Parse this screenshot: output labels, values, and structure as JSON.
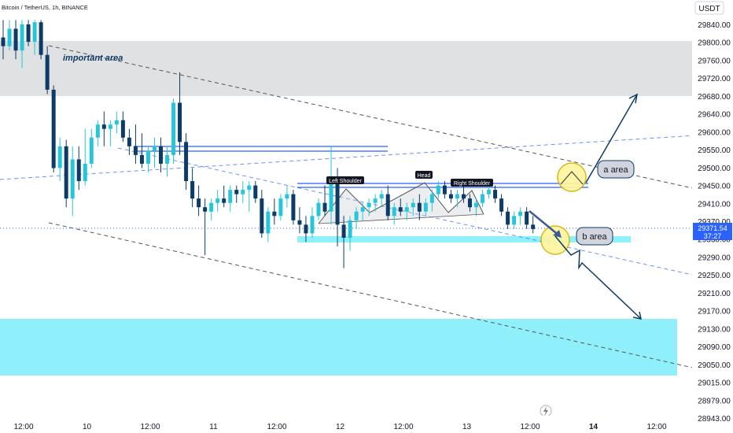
{
  "header": {
    "symbol_text": "Bitcoin / TetherUS, 1h, BINANCE"
  },
  "price_axis": {
    "currency": "USDT",
    "ticks": [
      "29840.00",
      "29800.00",
      "29760.00",
      "29720.00",
      "29680.00",
      "29640.00",
      "29600.00",
      "29550.00",
      "29500.00",
      "29450.00",
      "29410.00",
      "29370.00",
      "29330.00",
      "29290.00",
      "29250.00",
      "29210.00",
      "29170.00",
      "29130.00",
      "29090.00",
      "29050.00",
      "29015.00",
      "28979.00",
      "28943.00"
    ],
    "last_price": "29371.54",
    "countdown": "37:27",
    "last_price_color": "#2962ff"
  },
  "time_axis": {
    "ticks": [
      "12:00",
      "10",
      "12:00",
      "11",
      "12:00",
      "12",
      "12:00",
      "13",
      "12:00",
      "14",
      "12:00"
    ]
  },
  "annotations": {
    "important_area": "important area",
    "left_shoulder": "Left Shoulder",
    "head": "Head",
    "right_shoulder": "Right Shoulder",
    "a_area": "a area",
    "b_area": "b area"
  },
  "colors": {
    "up": "#26c6da",
    "down": "#0d3b66",
    "zone_gray": "#e0e1e3",
    "zone_cyan": "#8ff0fb",
    "trend": "#2962ff",
    "accent": "#2962ff"
  },
  "icons": {
    "replay": "lightning-icon"
  },
  "chart_data": {
    "type": "candlestick",
    "title": "Bitcoin / TetherUS, 1h, BINANCE",
    "ylim": [
      28943,
      29840
    ],
    "unit": "USDT",
    "candles": [
      {
        "o": 29810,
        "h": 29850,
        "l": 29760,
        "c": 29790
      },
      {
        "o": 29790,
        "h": 29850,
        "l": 29780,
        "c": 29830
      },
      {
        "o": 29830,
        "h": 29850,
        "l": 29760,
        "c": 29780
      },
      {
        "o": 29780,
        "h": 29850,
        "l": 29740,
        "c": 29840
      },
      {
        "o": 29840,
        "h": 29850,
        "l": 29790,
        "c": 29800
      },
      {
        "o": 29800,
        "h": 29850,
        "l": 29770,
        "c": 29845
      },
      {
        "o": 29845,
        "h": 29850,
        "l": 29760,
        "c": 29770
      },
      {
        "o": 29770,
        "h": 29790,
        "l": 29680,
        "c": 29690
      },
      {
        "o": 29690,
        "h": 29700,
        "l": 29500,
        "c": 29510
      },
      {
        "o": 29510,
        "h": 29580,
        "l": 29480,
        "c": 29560
      },
      {
        "o": 29560,
        "h": 29575,
        "l": 29420,
        "c": 29440
      },
      {
        "o": 29440,
        "h": 29560,
        "l": 29400,
        "c": 29530
      },
      {
        "o": 29530,
        "h": 29560,
        "l": 29460,
        "c": 29480
      },
      {
        "o": 29480,
        "h": 29600,
        "l": 29470,
        "c": 29520
      },
      {
        "o": 29520,
        "h": 29600,
        "l": 29510,
        "c": 29580
      },
      {
        "o": 29580,
        "h": 29620,
        "l": 29560,
        "c": 29610
      },
      {
        "o": 29610,
        "h": 29640,
        "l": 29560,
        "c": 29600
      },
      {
        "o": 29600,
        "h": 29620,
        "l": 29560,
        "c": 29610
      },
      {
        "o": 29610,
        "h": 29640,
        "l": 29590,
        "c": 29620
      },
      {
        "o": 29620,
        "h": 29640,
        "l": 29570,
        "c": 29580
      },
      {
        "o": 29580,
        "h": 29600,
        "l": 29540,
        "c": 29560
      },
      {
        "o": 29560,
        "h": 29610,
        "l": 29520,
        "c": 29540
      },
      {
        "o": 29540,
        "h": 29590,
        "l": 29510,
        "c": 29520
      },
      {
        "o": 29520,
        "h": 29560,
        "l": 29500,
        "c": 29550
      },
      {
        "o": 29550,
        "h": 29580,
        "l": 29510,
        "c": 29560
      },
      {
        "o": 29560,
        "h": 29580,
        "l": 29500,
        "c": 29520
      },
      {
        "o": 29520,
        "h": 29560,
        "l": 29490,
        "c": 29540
      },
      {
        "o": 29540,
        "h": 29670,
        "l": 29520,
        "c": 29660
      },
      {
        "o": 29660,
        "h": 29730,
        "l": 29540,
        "c": 29570
      },
      {
        "o": 29570,
        "h": 29590,
        "l": 29460,
        "c": 29480
      },
      {
        "o": 29480,
        "h": 29510,
        "l": 29420,
        "c": 29440
      },
      {
        "o": 29440,
        "h": 29470,
        "l": 29400,
        "c": 29420
      },
      {
        "o": 29420,
        "h": 29440,
        "l": 29310,
        "c": 29410
      },
      {
        "o": 29410,
        "h": 29440,
        "l": 29390,
        "c": 29430
      },
      {
        "o": 29430,
        "h": 29460,
        "l": 29410,
        "c": 29440
      },
      {
        "o": 29440,
        "h": 29470,
        "l": 29420,
        "c": 29430
      },
      {
        "o": 29430,
        "h": 29470,
        "l": 29410,
        "c": 29460
      },
      {
        "o": 29460,
        "h": 29470,
        "l": 29430,
        "c": 29450
      },
      {
        "o": 29450,
        "h": 29480,
        "l": 29430,
        "c": 29460
      },
      {
        "o": 29460,
        "h": 29480,
        "l": 29410,
        "c": 29470
      },
      {
        "o": 29470,
        "h": 29480,
        "l": 29430,
        "c": 29440
      },
      {
        "o": 29440,
        "h": 29460,
        "l": 29350,
        "c": 29360
      },
      {
        "o": 29360,
        "h": 29420,
        "l": 29340,
        "c": 29410
      },
      {
        "o": 29410,
        "h": 29440,
        "l": 29380,
        "c": 29400
      },
      {
        "o": 29400,
        "h": 29450,
        "l": 29390,
        "c": 29440
      },
      {
        "o": 29440,
        "h": 29470,
        "l": 29420,
        "c": 29450
      },
      {
        "o": 29450,
        "h": 29460,
        "l": 29380,
        "c": 29390
      },
      {
        "o": 29390,
        "h": 29420,
        "l": 29360,
        "c": 29380
      },
      {
        "o": 29380,
        "h": 29400,
        "l": 29340,
        "c": 29360
      },
      {
        "o": 29360,
        "h": 29420,
        "l": 29350,
        "c": 29400
      },
      {
        "o": 29400,
        "h": 29440,
        "l": 29390,
        "c": 29430
      },
      {
        "o": 29430,
        "h": 29470,
        "l": 29400,
        "c": 29410
      },
      {
        "o": 29410,
        "h": 29560,
        "l": 29380,
        "c": 29480
      },
      {
        "o": 29480,
        "h": 29510,
        "l": 29330,
        "c": 29380
      },
      {
        "o": 29380,
        "h": 29400,
        "l": 29280,
        "c": 29350
      },
      {
        "o": 29350,
        "h": 29400,
        "l": 29320,
        "c": 29390
      },
      {
        "o": 29390,
        "h": 29420,
        "l": 29370,
        "c": 29410
      },
      {
        "o": 29410,
        "h": 29430,
        "l": 29390,
        "c": 29420
      },
      {
        "o": 29420,
        "h": 29440,
        "l": 29400,
        "c": 29430
      },
      {
        "o": 29430,
        "h": 29450,
        "l": 29410,
        "c": 29440
      },
      {
        "o": 29440,
        "h": 29460,
        "l": 29420,
        "c": 29450
      },
      {
        "o": 29450,
        "h": 29470,
        "l": 29390,
        "c": 29400
      },
      {
        "o": 29400,
        "h": 29430,
        "l": 29380,
        "c": 29420
      },
      {
        "o": 29420,
        "h": 29440,
        "l": 29400,
        "c": 29410
      },
      {
        "o": 29410,
        "h": 29430,
        "l": 29390,
        "c": 29420
      },
      {
        "o": 29420,
        "h": 29440,
        "l": 29400,
        "c": 29430
      },
      {
        "o": 29430,
        "h": 29450,
        "l": 29390,
        "c": 29410
      },
      {
        "o": 29410,
        "h": 29440,
        "l": 29400,
        "c": 29430
      },
      {
        "o": 29430,
        "h": 29460,
        "l": 29410,
        "c": 29450
      },
      {
        "o": 29450,
        "h": 29480,
        "l": 29440,
        "c": 29470
      },
      {
        "o": 29470,
        "h": 29480,
        "l": 29440,
        "c": 29450
      },
      {
        "o": 29450,
        "h": 29460,
        "l": 29430,
        "c": 29440
      },
      {
        "o": 29440,
        "h": 29460,
        "l": 29420,
        "c": 29450
      },
      {
        "o": 29450,
        "h": 29470,
        "l": 29430,
        "c": 29440
      },
      {
        "o": 29440,
        "h": 29450,
        "l": 29410,
        "c": 29420
      },
      {
        "o": 29420,
        "h": 29440,
        "l": 29400,
        "c": 29430
      },
      {
        "o": 29430,
        "h": 29460,
        "l": 29420,
        "c": 29450
      },
      {
        "o": 29450,
        "h": 29470,
        "l": 29440,
        "c": 29460
      },
      {
        "o": 29460,
        "h": 29470,
        "l": 29430,
        "c": 29440
      },
      {
        "o": 29440,
        "h": 29450,
        "l": 29400,
        "c": 29410
      },
      {
        "o": 29410,
        "h": 29420,
        "l": 29370,
        "c": 29380
      },
      {
        "o": 29380,
        "h": 29410,
        "l": 29370,
        "c": 29400
      },
      {
        "o": 29400,
        "h": 29420,
        "l": 29380,
        "c": 29410
      },
      {
        "o": 29410,
        "h": 29420,
        "l": 29370,
        "c": 29380
      },
      {
        "o": 29380,
        "h": 29400,
        "l": 29360,
        "c": 29370
      }
    ]
  }
}
